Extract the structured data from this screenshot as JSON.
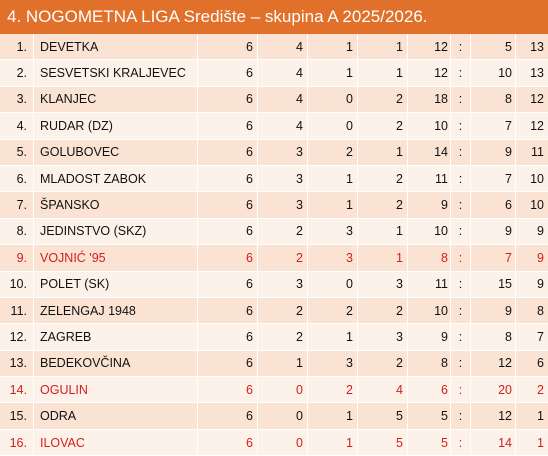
{
  "title": "4. NOGOMETNA LIGA Središte – skupina A 2025/2026.",
  "colors": {
    "header": "#e0702a",
    "row_odd": "#fbe3d4",
    "row_even": "#fdf2ea",
    "highlight_text": "#d11e1e"
  },
  "table": {
    "rows": [
      {
        "pos": "1.",
        "team": "DEVETKA",
        "p": "6",
        "w": "4",
        "d": "1",
        "l": "1",
        "gf": "12",
        "sep": ":",
        "ga": "5",
        "pts": "13",
        "highlight": false
      },
      {
        "pos": "2.",
        "team": "SESVETSKI KRALJEVEC",
        "p": "6",
        "w": "4",
        "d": "1",
        "l": "1",
        "gf": "12",
        "sep": ":",
        "ga": "10",
        "pts": "13",
        "highlight": false
      },
      {
        "pos": "3.",
        "team": "KLANJEC",
        "p": "6",
        "w": "4",
        "d": "0",
        "l": "2",
        "gf": "18",
        "sep": ":",
        "ga": "8",
        "pts": "12",
        "highlight": false
      },
      {
        "pos": "4.",
        "team": "RUDAR (DZ)",
        "p": "6",
        "w": "4",
        "d": "0",
        "l": "2",
        "gf": "10",
        "sep": ":",
        "ga": "7",
        "pts": "12",
        "highlight": false
      },
      {
        "pos": "5.",
        "team": "GOLUBOVEC",
        "p": "6",
        "w": "3",
        "d": "2",
        "l": "1",
        "gf": "14",
        "sep": ":",
        "ga": "9",
        "pts": "11",
        "highlight": false
      },
      {
        "pos": "6.",
        "team": "MLADOST ZABOK",
        "p": "6",
        "w": "3",
        "d": "1",
        "l": "2",
        "gf": "11",
        "sep": ":",
        "ga": "7",
        "pts": "10",
        "highlight": false
      },
      {
        "pos": "7.",
        "team": "ŠPANSKO",
        "p": "6",
        "w": "3",
        "d": "1",
        "l": "2",
        "gf": "9",
        "sep": ":",
        "ga": "6",
        "pts": "10",
        "highlight": false
      },
      {
        "pos": "8.",
        "team": "JEDINSTVO (SKZ)",
        "p": "6",
        "w": "2",
        "d": "3",
        "l": "1",
        "gf": "10",
        "sep": ":",
        "ga": "9",
        "pts": "9",
        "highlight": false
      },
      {
        "pos": "9.",
        "team": "VOJNIĆ '95",
        "p": "6",
        "w": "2",
        "d": "3",
        "l": "1",
        "gf": "8",
        "sep": ":",
        "ga": "7",
        "pts": "9",
        "highlight": true
      },
      {
        "pos": "10.",
        "team": "POLET (SK)",
        "p": "6",
        "w": "3",
        "d": "0",
        "l": "3",
        "gf": "11",
        "sep": ":",
        "ga": "15",
        "pts": "9",
        "highlight": false
      },
      {
        "pos": "11.",
        "team": "ZELENGAJ 1948",
        "p": "6",
        "w": "2",
        "d": "2",
        "l": "2",
        "gf": "10",
        "sep": ":",
        "ga": "9",
        "pts": "8",
        "highlight": false
      },
      {
        "pos": "12.",
        "team": "ZAGREB",
        "p": "6",
        "w": "2",
        "d": "1",
        "l": "3",
        "gf": "9",
        "sep": ":",
        "ga": "8",
        "pts": "7",
        "highlight": false
      },
      {
        "pos": "13.",
        "team": "BEDEKOVČINA",
        "p": "6",
        "w": "1",
        "d": "3",
        "l": "2",
        "gf": "8",
        "sep": ":",
        "ga": "12",
        "pts": "6",
        "highlight": false
      },
      {
        "pos": "14.",
        "team": "OGULIN",
        "p": "6",
        "w": "0",
        "d": "2",
        "l": "4",
        "gf": "6",
        "sep": ":",
        "ga": "20",
        "pts": "2",
        "highlight": true
      },
      {
        "pos": "15.",
        "team": "ODRA",
        "p": "6",
        "w": "0",
        "d": "1",
        "l": "5",
        "gf": "5",
        "sep": ":",
        "ga": "12",
        "pts": "1",
        "highlight": false
      },
      {
        "pos": "16.",
        "team": "ILOVAC",
        "p": "6",
        "w": "0",
        "d": "1",
        "l": "5",
        "gf": "5",
        "sep": ":",
        "ga": "14",
        "pts": "1",
        "highlight": true
      }
    ]
  }
}
